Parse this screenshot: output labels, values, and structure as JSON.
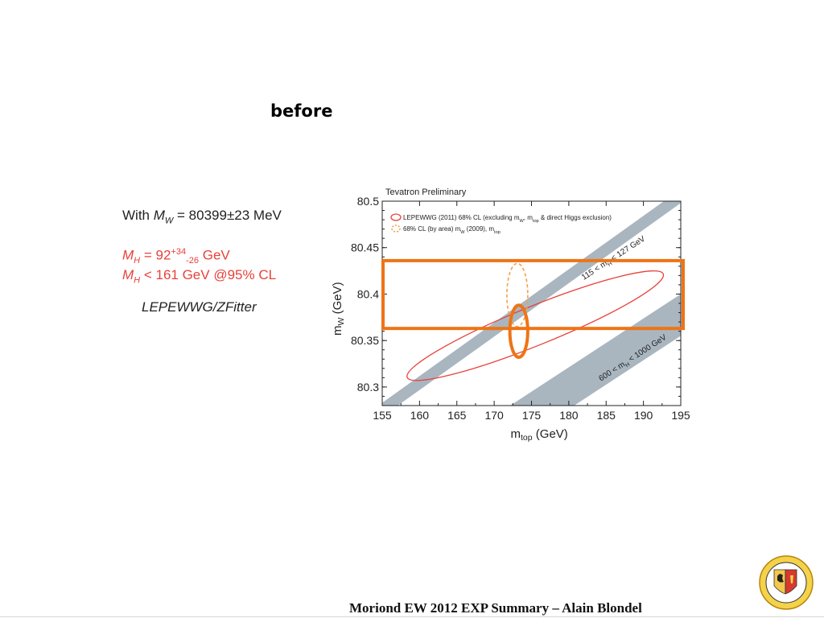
{
  "slide": {
    "title": "before",
    "footer": "Moriond EW 2012 EXP Summary – Alain Blondel"
  },
  "notes": {
    "mw_prefix": "With ",
    "mw_symbol": "M",
    "mw_sub": "W",
    "mw_value": " = 80399±23 MeV",
    "mh_symbol": "M",
    "mh_sub": "H",
    "mh_eq": " = 92",
    "mh_sup": "+34",
    "mh_subscr": "-26",
    "mh_unit": " GeV",
    "mh2_symbol": "M",
    "mh2_sub": "H",
    "mh2_text": " < 161 GeV @95% CL",
    "source": "LEPEWWG/ZFitter"
  },
  "colors": {
    "ellipse_red": "#e8413a",
    "band_grey": "#a9b6c0",
    "highlight_orange": "#ee7416",
    "dashed_orange": "#f2a04a",
    "axis": "#222222"
  },
  "chart_data": {
    "type": "scatter",
    "title": "Tevatron Preliminary",
    "xlabel": "m",
    "xlabel_sub": "top",
    "xlabel_unit": " (GeV)",
    "ylabel": "m",
    "ylabel_sub": "W",
    "ylabel_unit": " (GeV)",
    "xlim": [
      155,
      195
    ],
    "ylim": [
      80.28,
      80.5
    ],
    "xticks": [
      155,
      160,
      165,
      170,
      175,
      180,
      185,
      190,
      195
    ],
    "yticks": [
      80.3,
      80.35,
      80.4,
      80.45,
      80.5
    ],
    "ytick_labels": [
      "80.3",
      "80.35",
      "80.4",
      "80.45",
      "80.5"
    ],
    "legend": [
      {
        "label": "LEPEWWG (2011) 68% CL (excluding m",
        "sub": "W",
        "rest": ", m",
        "sub2": "top",
        "tail": " & direct Higgs exclusion)",
        "style": "solid-red"
      },
      {
        "label": "68% CL (by area) m",
        "sub": "W",
        "rest": " (2009), m",
        "sub2": "top",
        "tail": "",
        "style": "dashed-orange"
      }
    ],
    "legend_position": "top-left",
    "bands": [
      {
        "label": "115 < m",
        "sub": "H",
        "tail": " < 127 GeV",
        "x": [
          155,
          195
        ],
        "y_at_x0": [
          80.268,
          80.283
        ],
        "y_at_x1": [
          80.498,
          80.513
        ]
      },
      {
        "label": "600 < m",
        "sub": "H",
        "tail": " < 1000 GeV",
        "x": [
          155,
          195
        ],
        "y_at_x0": [
          80.145,
          80.19
        ],
        "y_at_x1": [
          80.355,
          80.4
        ]
      }
    ],
    "ellipses": [
      {
        "name": "LEPEWWG (2011) 68% CL",
        "center": [
          175.5,
          80.366
        ],
        "rx": 18.5,
        "ry": 0.021,
        "angle": 22,
        "style": "solid-red"
      },
      {
        "name": "68% CL (by area) mW (2009), mtop",
        "center": [
          173.1,
          80.399
        ],
        "rx": 1.4,
        "ry": 0.034,
        "angle": 0,
        "style": "dashed-orange"
      },
      {
        "name": "highlight",
        "center": [
          173.3,
          80.36
        ],
        "rx": 1.2,
        "ry": 0.028,
        "angle": 0,
        "style": "thick-orange"
      }
    ],
    "highlight_box": {
      "x": [
        155,
        195
      ],
      "y": [
        80.363,
        80.436
      ]
    }
  }
}
